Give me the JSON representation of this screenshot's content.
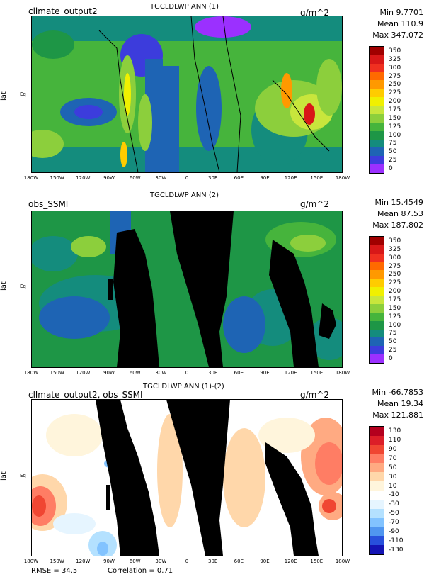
{
  "panels": [
    {
      "case": "cllmate_output2",
      "title": "TGCLDLWP ANN (1)",
      "units": "g/m^2",
      "stats": {
        "min": "Min 9.7701",
        "mean": "Mean 110.9",
        "max": "Max 347.072"
      },
      "ylabel": "lat",
      "eq_label": "Eq",
      "colorbar": {
        "labels": [
          "350",
          "325",
          "300",
          "275",
          "250",
          "225",
          "200",
          "175",
          "150",
          "125",
          "100",
          "75",
          "50",
          "25",
          "0"
        ],
        "colors": [
          "#a00000",
          "#d81818",
          "#f03020",
          "#ff6a00",
          "#ff9900",
          "#ffcc00",
          "#f0f000",
          "#c8e63c",
          "#8ccf3c",
          "#46b43c",
          "#1e9646",
          "#148c7d",
          "#1e64b4",
          "#3c3cdc",
          "#9b30ff"
        ]
      }
    },
    {
      "case": "obs_SSMI",
      "title": "TGCLDLWP ANN (2)",
      "units": "g/m^2",
      "stats": {
        "min": "Min 15.4549",
        "mean": "Mean 87.53",
        "max": "Max 187.802"
      },
      "ylabel": "lat",
      "eq_label": "Eq",
      "colorbar": {
        "labels": [
          "350",
          "325",
          "300",
          "275",
          "250",
          "225",
          "200",
          "175",
          "150",
          "125",
          "100",
          "75",
          "50",
          "25",
          "0"
        ],
        "colors": [
          "#a00000",
          "#d81818",
          "#f03020",
          "#ff6a00",
          "#ff9900",
          "#ffcc00",
          "#f0f000",
          "#c8e63c",
          "#8ccf3c",
          "#46b43c",
          "#1e9646",
          "#148c7d",
          "#1e64b4",
          "#3c3cdc",
          "#9b30ff"
        ]
      }
    },
    {
      "case": "cllmate_output2, obs_SSMI",
      "title": "TGCLDLWP ANN (1)-(2)",
      "units": "g/m^2",
      "stats": {
        "min": "Min -66.7853",
        "mean": "Mean 19.34",
        "max": "Max 121.881"
      },
      "ylabel": "lat",
      "eq_label": "Eq",
      "colorbar": {
        "labels": [
          "130",
          "110",
          "90",
          "70",
          "50",
          "30",
          "10",
          "-10",
          "-30",
          "-50",
          "-70",
          "-90",
          "-110",
          "-130"
        ],
        "colors": [
          "#b4001e",
          "#dc1e28",
          "#f04632",
          "#ff7d64",
          "#ffaa82",
          "#ffd7aa",
          "#fff5dc",
          "#ffffff",
          "#e6f5ff",
          "#b4e1ff",
          "#82c3ff",
          "#5096f0",
          "#2850dc",
          "#1414b4"
        ]
      }
    }
  ],
  "x_ticks": [
    "180W",
    "150W",
    "120W",
    "90W",
    "60W",
    "30W",
    "0",
    "30E",
    "60E",
    "90E",
    "120E",
    "150E",
    "180W"
  ],
  "footer": {
    "rmse": "RMSE = 34.5",
    "correlation": "Correlation = 0.71"
  },
  "chart_data": [
    {
      "type": "heatmap",
      "title": "TGCLDLWP ANN (1)",
      "units": "g/m^2",
      "x": "longitude",
      "xlim": [
        "180W",
        "180W"
      ],
      "min": 9.7701,
      "mean": 110.9,
      "max": 347.072,
      "levels": [
        0,
        25,
        50,
        75,
        100,
        125,
        150,
        175,
        200,
        225,
        250,
        275,
        300,
        325,
        350
      ]
    },
    {
      "type": "heatmap",
      "title": "TGCLDLWP ANN (2)",
      "units": "g/m^2",
      "x": "longitude",
      "xlim": [
        "180W",
        "180W"
      ],
      "min": 15.4549,
      "mean": 87.53,
      "max": 187.802,
      "levels": [
        0,
        25,
        50,
        75,
        100,
        125,
        150,
        175,
        200,
        225,
        250,
        275,
        300,
        325,
        350
      ]
    },
    {
      "type": "heatmap",
      "title": "TGCLDLWP ANN (1)-(2)",
      "units": "g/m^2",
      "x": "longitude",
      "xlim": [
        "180W",
        "180W"
      ],
      "min": -66.7853,
      "mean": 19.34,
      "max": 121.881,
      "levels": [
        -130,
        -110,
        -90,
        -70,
        -50,
        -30,
        -10,
        10,
        30,
        50,
        70,
        90,
        110,
        130
      ],
      "rmse": 34.5,
      "correlation": 0.71
    }
  ]
}
